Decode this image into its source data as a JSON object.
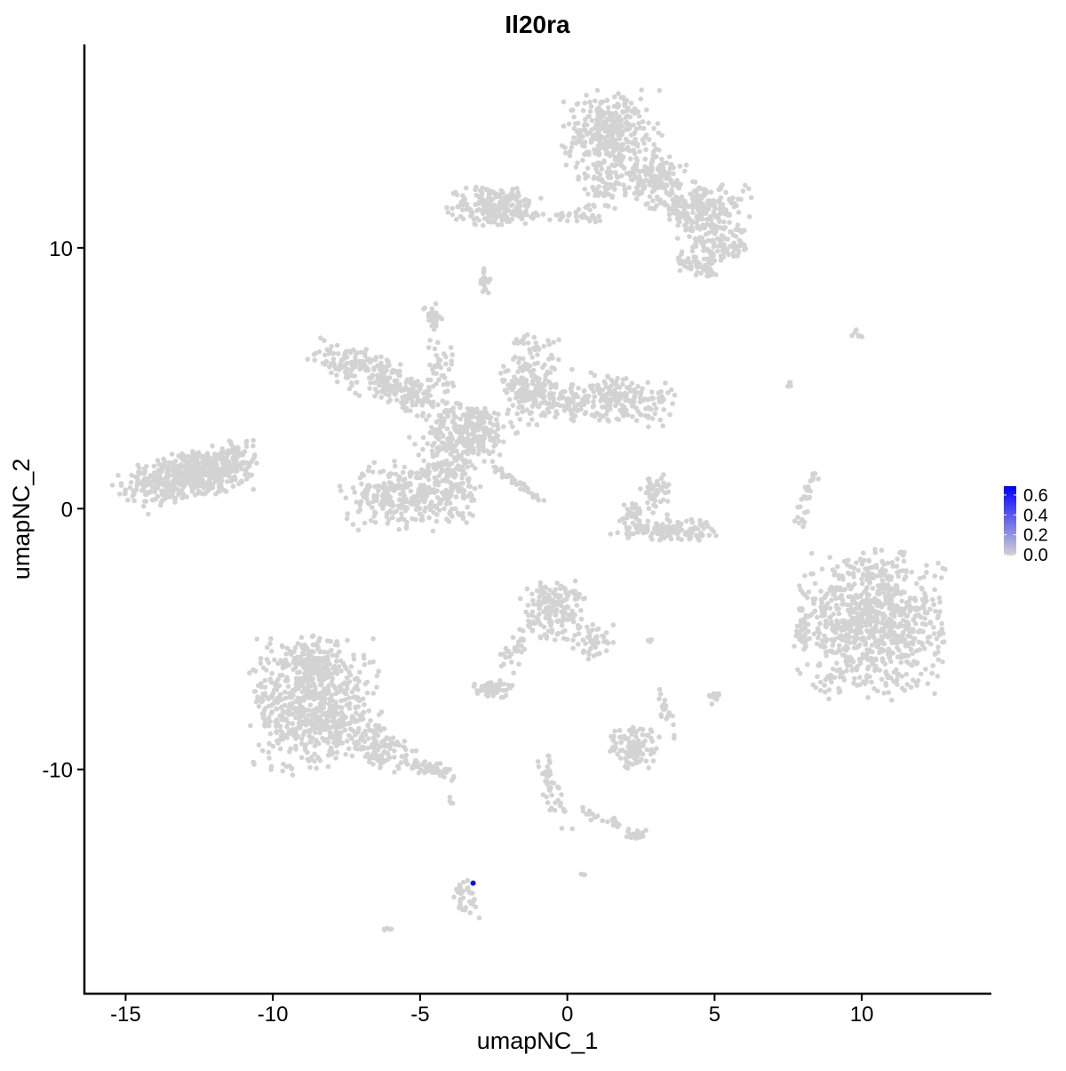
{
  "chart_data": {
    "type": "scatter",
    "title": "Il20ra",
    "xlabel": "umapNC_1",
    "ylabel": "umapNC_2",
    "xlim": [
      -16.4,
      14.4
    ],
    "ylim": [
      -18.6,
      17.8
    ],
    "xticks": [
      -15,
      -10,
      -5,
      0,
      5,
      10
    ],
    "yticks": [
      -10,
      0,
      10
    ],
    "grid": false,
    "colors": {
      "low": "#d3d3d3",
      "high": "#0000ff"
    },
    "legend": {
      "placement": "right",
      "ticks": [
        "0.0",
        "0.2",
        "0.4",
        "0.6"
      ],
      "range": [
        0,
        0.68
      ]
    },
    "clusters_expression_value": 0,
    "clusters": [
      {
        "cx": -12.8,
        "cy": 1.25,
        "sx": 1.1,
        "sy": 0.45,
        "angle": 12,
        "n": 520
      },
      {
        "cx": -11.6,
        "cy": 1.9,
        "sx": 0.5,
        "sy": 0.3,
        "angle": 20,
        "n": 60
      },
      {
        "cx": -7.2,
        "cy": 5.5,
        "sx": 0.7,
        "sy": 0.35,
        "angle": -20,
        "n": 120
      },
      {
        "cx": -5.6,
        "cy": 4.5,
        "sx": 0.8,
        "sy": 0.35,
        "angle": -25,
        "n": 140
      },
      {
        "cx": -4.6,
        "cy": 7.4,
        "sx": 0.15,
        "sy": 0.25,
        "angle": 0,
        "n": 25
      },
      {
        "cx": -4.3,
        "cy": 5.6,
        "sx": 0.2,
        "sy": 0.8,
        "angle": 10,
        "n": 40
      },
      {
        "cx": -3.3,
        "cy": 3.0,
        "sx": 0.7,
        "sy": 0.5,
        "angle": 0,
        "n": 250
      },
      {
        "cx": -4.0,
        "cy": 1.6,
        "sx": 0.5,
        "sy": 0.9,
        "angle": 15,
        "n": 160
      },
      {
        "cx": -5.5,
        "cy": 0.5,
        "sx": 1.0,
        "sy": 0.6,
        "angle": 0,
        "n": 300
      },
      {
        "cx": -1.3,
        "cy": 5.0,
        "sx": 0.45,
        "sy": 0.9,
        "angle": -10,
        "n": 160
      },
      {
        "cx": -0.6,
        "cy": 4.2,
        "sx": 0.7,
        "sy": 0.35,
        "angle": -15,
        "n": 110
      },
      {
        "cx": 1.8,
        "cy": 4.2,
        "sx": 0.9,
        "sy": 0.45,
        "angle": -10,
        "n": 200
      },
      {
        "cx": -2.0,
        "cy": 1.2,
        "sx": 0.9,
        "sy": 0.08,
        "angle": -38,
        "n": 45
      },
      {
        "cx": 1.5,
        "cy": 14.4,
        "sx": 0.75,
        "sy": 0.75,
        "angle": 0,
        "n": 330
      },
      {
        "cx": 1.3,
        "cy": 12.5,
        "sx": 0.5,
        "sy": 0.6,
        "angle": 0,
        "n": 90
      },
      {
        "cx": 3.0,
        "cy": 12.6,
        "sx": 0.6,
        "sy": 0.5,
        "angle": -30,
        "n": 150
      },
      {
        "cx": 4.6,
        "cy": 11.5,
        "sx": 0.75,
        "sy": 0.4,
        "angle": 0,
        "n": 200
      },
      {
        "cx": 5.1,
        "cy": 10.1,
        "sx": 0.6,
        "sy": 0.35,
        "angle": 0,
        "n": 110
      },
      {
        "cx": 4.4,
        "cy": 9.3,
        "sx": 0.4,
        "sy": 0.2,
        "angle": -30,
        "n": 50
      },
      {
        "cx": -2.5,
        "cy": 11.6,
        "sx": 0.7,
        "sy": 0.35,
        "angle": 0,
        "n": 200
      },
      {
        "cx": -0.6,
        "cy": 11.2,
        "sx": 0.9,
        "sy": 0.12,
        "angle": 0,
        "n": 45
      },
      {
        "cx": -2.8,
        "cy": 8.8,
        "sx": 0.12,
        "sy": 0.25,
        "angle": 0,
        "n": 18
      },
      {
        "cx": 3.0,
        "cy": 0.6,
        "sx": 0.25,
        "sy": 0.4,
        "angle": 0,
        "n": 45
      },
      {
        "cx": 3.3,
        "cy": -0.8,
        "sx": 0.85,
        "sy": 0.2,
        "angle": 0,
        "n": 130
      },
      {
        "cx": 2.3,
        "cy": -0.2,
        "sx": 0.2,
        "sy": 0.25,
        "angle": 0,
        "n": 25
      },
      {
        "cx": 10.4,
        "cy": -4.4,
        "sx": 1.15,
        "sy": 1.3,
        "angle": 0,
        "n": 850
      },
      {
        "cx": 8.0,
        "cy": -4.5,
        "sx": 0.15,
        "sy": 0.45,
        "angle": 0,
        "n": 40
      },
      {
        "cx": 8.1,
        "cy": 0.4,
        "sx": 0.1,
        "sy": 0.55,
        "angle": -15,
        "n": 30
      },
      {
        "cx": 7.6,
        "cy": 4.8,
        "sx": 0.08,
        "sy": 0.1,
        "angle": 0,
        "n": 4
      },
      {
        "cx": 9.8,
        "cy": 6.7,
        "sx": 0.12,
        "sy": 0.1,
        "angle": 0,
        "n": 6
      },
      {
        "cx": -8.6,
        "cy": -7.6,
        "sx": 1.0,
        "sy": 1.2,
        "angle": 0,
        "n": 650
      },
      {
        "cx": -8.8,
        "cy": -5.8,
        "sx": 0.4,
        "sy": 0.4,
        "angle": 0,
        "n": 100
      },
      {
        "cx": -6.5,
        "cy": -9.0,
        "sx": 0.7,
        "sy": 0.35,
        "angle": -25,
        "n": 120
      },
      {
        "cx": -4.6,
        "cy": -10.0,
        "sx": 0.5,
        "sy": 0.15,
        "angle": -20,
        "n": 50
      },
      {
        "cx": -0.5,
        "cy": -3.8,
        "sx": 0.5,
        "sy": 0.55,
        "angle": -20,
        "n": 170
      },
      {
        "cx": 0.9,
        "cy": -5.0,
        "sx": 0.35,
        "sy": 0.35,
        "angle": 0,
        "n": 45
      },
      {
        "cx": -1.7,
        "cy": -5.4,
        "sx": 0.3,
        "sy": 0.5,
        "angle": -30,
        "n": 35
      },
      {
        "cx": -2.6,
        "cy": -6.9,
        "sx": 0.35,
        "sy": 0.15,
        "angle": 0,
        "n": 60
      },
      {
        "cx": 2.3,
        "cy": -9.2,
        "sx": 0.4,
        "sy": 0.4,
        "angle": 0,
        "n": 110
      },
      {
        "cx": 3.3,
        "cy": -7.8,
        "sx": 0.12,
        "sy": 0.5,
        "angle": 20,
        "n": 20
      },
      {
        "cx": 5.0,
        "cy": -7.2,
        "sx": 0.1,
        "sy": 0.15,
        "angle": 0,
        "n": 15
      },
      {
        "cx": -0.5,
        "cy": -10.9,
        "sx": 0.15,
        "sy": 0.8,
        "angle": 15,
        "n": 45
      },
      {
        "cx": 1.3,
        "cy": -11.9,
        "sx": 0.6,
        "sy": 0.1,
        "angle": -20,
        "n": 20
      },
      {
        "cx": 2.3,
        "cy": -12.5,
        "sx": 0.2,
        "sy": 0.1,
        "angle": 0,
        "n": 20
      },
      {
        "cx": -3.4,
        "cy": -14.9,
        "sx": 0.2,
        "sy": 0.4,
        "angle": 20,
        "n": 35
      },
      {
        "cx": -6.1,
        "cy": -16.1,
        "sx": 0.08,
        "sy": 0.05,
        "angle": 0,
        "n": 5
      },
      {
        "cx": 0.6,
        "cy": -14.0,
        "sx": 0.08,
        "sy": 0.05,
        "angle": 0,
        "n": 4
      },
      {
        "cx": -3.9,
        "cy": -11.2,
        "sx": 0.06,
        "sy": 0.1,
        "angle": 0,
        "n": 4
      },
      {
        "cx": 2.8,
        "cy": -5.1,
        "sx": 0.1,
        "sy": 0.05,
        "angle": 0,
        "n": 3
      }
    ],
    "expressing_points": [
      {
        "x": -3.2,
        "y": -14.36,
        "value": 0.65
      }
    ]
  }
}
